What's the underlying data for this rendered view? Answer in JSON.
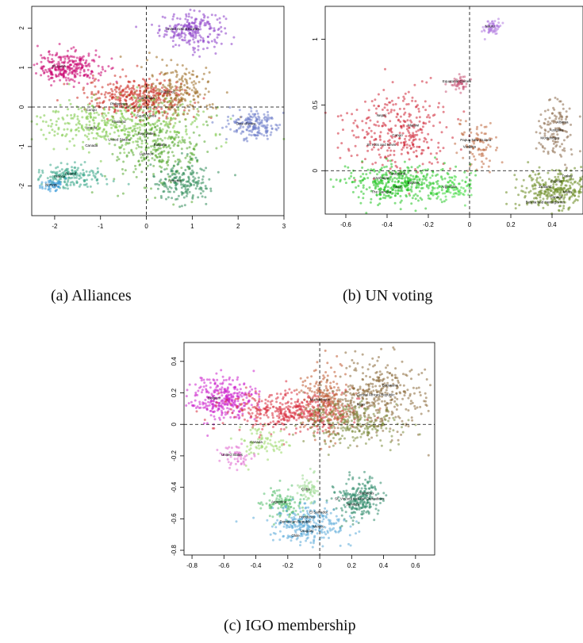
{
  "figure": {
    "captions": [
      "(a) Alliances",
      "(b) UN voting",
      "(c) IGO membership"
    ]
  },
  "chart_data": [
    {
      "type": "scatter",
      "title": "",
      "xlim": [
        -2.5,
        3.0
      ],
      "ylim": [
        -2.75,
        2.55
      ],
      "xticks": [
        -2,
        -1,
        0,
        1,
        2,
        3
      ],
      "yticks": [
        -2,
        -1,
        0,
        1,
        2
      ],
      "reference_lines": {
        "x": 0,
        "y": 0,
        "style": "dashed"
      },
      "grid": false,
      "clusters": [
        {
          "color": "#8a3cc8",
          "center": [
            1.0,
            1.95
          ],
          "spread": [
            0.35,
            0.22
          ],
          "n": 220,
          "labels": [
            "United Arab Emirates"
          ]
        },
        {
          "color": "#c8006e",
          "center": [
            -1.7,
            1.0
          ],
          "spread": [
            0.35,
            0.2
          ],
          "n": 260,
          "labels": [
            "St. Lucia"
          ]
        },
        {
          "color": "#cc2a20",
          "center": [
            -0.2,
            0.25
          ],
          "spread": [
            0.55,
            0.25
          ],
          "n": 360,
          "labels": []
        },
        {
          "color": "#9a6a20",
          "center": [
            0.7,
            0.35
          ],
          "spread": [
            0.4,
            0.35
          ],
          "n": 220,
          "labels": [
            "Public of"
          ]
        },
        {
          "color": "#7ac943",
          "center": [
            -0.6,
            -0.4
          ],
          "spread": [
            1.0,
            0.3
          ],
          "n": 420,
          "labels": [
            "Canada",
            "United States",
            "Seychelles",
            "Angola",
            "Thailand",
            "South Korea",
            "Congo",
            "Philippines",
            "Cambodia"
          ]
        },
        {
          "color": "#55a830",
          "center": [
            0.3,
            -1.1
          ],
          "spread": [
            0.5,
            0.45
          ],
          "n": 260,
          "labels": [
            "Lebanon",
            "Bulgaria"
          ]
        },
        {
          "color": "#2e8b57",
          "center": [
            0.8,
            -1.9
          ],
          "spread": [
            0.3,
            0.25
          ],
          "n": 180,
          "labels": [
            "Armenia"
          ]
        },
        {
          "color": "#6a7ac8",
          "center": [
            2.35,
            -0.45
          ],
          "spread": [
            0.3,
            0.18
          ],
          "n": 180,
          "labels": [
            "Cote d'Ivoire"
          ]
        },
        {
          "color": "#3aa88a",
          "center": [
            -1.65,
            -1.75
          ],
          "spread": [
            0.4,
            0.15
          ],
          "n": 180,
          "labels": [
            "France",
            "Poland"
          ]
        },
        {
          "color": "#3a9ad8",
          "center": [
            -2.0,
            -2.0
          ],
          "spread": [
            0.12,
            0.08
          ],
          "n": 50,
          "labels": [
            "Norway"
          ]
        }
      ]
    },
    {
      "type": "scatter",
      "title": "",
      "xlim": [
        -0.7,
        0.55
      ],
      "ylim": [
        -0.33,
        1.25
      ],
      "xticks": [
        -0.6,
        -0.4,
        -0.2,
        0.0,
        0.2,
        0.4
      ],
      "yticks": [
        0.0,
        0.5,
        1.0
      ],
      "reference_lines": {
        "x": 0,
        "y": 0,
        "style": "dashed"
      },
      "grid": false,
      "clusters": [
        {
          "color": "#b07ae0",
          "center": [
            0.11,
            1.09
          ],
          "spread": [
            0.02,
            0.03
          ],
          "n": 60,
          "labels": [
            "Nauru"
          ]
        },
        {
          "color": "#c85a7a",
          "center": [
            -0.05,
            0.67
          ],
          "spread": [
            0.02,
            0.03
          ],
          "n": 50,
          "labels": [
            "Equatorial Guinea"
          ]
        },
        {
          "color": "#d02838",
          "center": [
            -0.35,
            0.3
          ],
          "spread": [
            0.13,
            0.15
          ],
          "n": 320,
          "labels": [
            "St. Kitts and Nevis",
            "Congo",
            "Malawi",
            "Nepal"
          ]
        },
        {
          "color": "#c06a40",
          "center": [
            0.03,
            0.2
          ],
          "spread": [
            0.05,
            0.1
          ],
          "n": 80,
          "labels": [
            "Vanuatu",
            "Papua New Guinea"
          ]
        },
        {
          "color": "#22c422",
          "center": [
            -0.35,
            -0.1
          ],
          "spread": [
            0.13,
            0.07
          ],
          "n": 380,
          "labels": [
            "The Gambia",
            "Chad",
            "Belarus",
            "Azerbaijan",
            "Swaziland"
          ]
        },
        {
          "color": "#44dd44",
          "center": [
            -0.07,
            -0.13
          ],
          "spread": [
            0.05,
            0.05
          ],
          "n": 80,
          "labels": [
            "Argentina"
          ]
        },
        {
          "color": "#8a6a4a",
          "center": [
            0.42,
            0.3
          ],
          "spread": [
            0.05,
            0.12
          ],
          "n": 120,
          "labels": [
            "Montenegro",
            "Australia",
            "Albania"
          ]
        },
        {
          "color": "#6a8a20",
          "center": [
            0.42,
            -0.15
          ],
          "spread": [
            0.09,
            0.08
          ],
          "n": 300,
          "labels": [
            "Bosnia and Herzegovina",
            "Canada",
            "Malta",
            "Zealand",
            "Cyprus",
            "Turkey"
          ]
        }
      ]
    },
    {
      "type": "scatter",
      "title": "",
      "xlim": [
        -0.85,
        0.72
      ],
      "ylim": [
        -0.83,
        0.52
      ],
      "xticks": [
        -0.8,
        -0.6,
        -0.4,
        -0.2,
        0.0,
        0.2,
        0.4,
        0.6
      ],
      "yticks": [
        -0.8,
        -0.6,
        -0.4,
        -0.2,
        0.0,
        0.2,
        0.4
      ],
      "reference_lines": {
        "x": 0,
        "y": 0,
        "style": "dashed"
      },
      "grid": false,
      "clusters": [
        {
          "color": "#cc22cc",
          "center": [
            -0.6,
            0.16
          ],
          "spread": [
            0.1,
            0.07
          ],
          "n": 320,
          "labels": [
            "Belgium"
          ]
        },
        {
          "color": "#d83040",
          "center": [
            -0.2,
            0.08
          ],
          "spread": [
            0.2,
            0.06
          ],
          "n": 420,
          "labels": []
        },
        {
          "color": "#c05a30",
          "center": [
            0.05,
            0.15
          ],
          "spread": [
            0.08,
            0.12
          ],
          "n": 220,
          "labels": [
            "Mozambique"
          ]
        },
        {
          "color": "#8a6a3a",
          "center": [
            0.35,
            0.18
          ],
          "spread": [
            0.15,
            0.12
          ],
          "n": 360,
          "labels": [
            "Niger",
            "Central African Republic",
            "Botswana"
          ]
        },
        {
          "color": "#7a8a3a",
          "center": [
            0.2,
            0.0
          ],
          "spread": [
            0.15,
            0.07
          ],
          "n": 240,
          "labels": []
        },
        {
          "color": "#9ad86a",
          "center": [
            -0.35,
            -0.12
          ],
          "spread": [
            0.08,
            0.05
          ],
          "n": 80,
          "labels": [
            "Canada"
          ]
        },
        {
          "color": "#e06ad0",
          "center": [
            -0.52,
            -0.2
          ],
          "spread": [
            0.05,
            0.04
          ],
          "n": 50,
          "labels": [
            "United States"
          ]
        },
        {
          "color": "#9ad890",
          "center": [
            -0.07,
            -0.42
          ],
          "spread": [
            0.03,
            0.05
          ],
          "n": 60,
          "labels": [
            "Cuba"
          ]
        },
        {
          "color": "#58c070",
          "center": [
            -0.22,
            -0.5
          ],
          "spread": [
            0.06,
            0.05
          ],
          "n": 120,
          "labels": [
            "Argentina"
          ]
        },
        {
          "color": "#2e8a6a",
          "center": [
            0.25,
            -0.48
          ],
          "spread": [
            0.07,
            0.07
          ],
          "n": 220,
          "labels": [
            "Jamaica",
            "St. Vincent and the Grenadines",
            "Barbados"
          ]
        },
        {
          "color": "#5aaad8",
          "center": [
            -0.08,
            -0.64
          ],
          "spread": [
            0.12,
            0.06
          ],
          "n": 260,
          "labels": [
            "Chile",
            "Uruguay",
            "Mexico",
            "Dominican Republic",
            "Honduras",
            "El Salvador"
          ]
        }
      ]
    }
  ]
}
